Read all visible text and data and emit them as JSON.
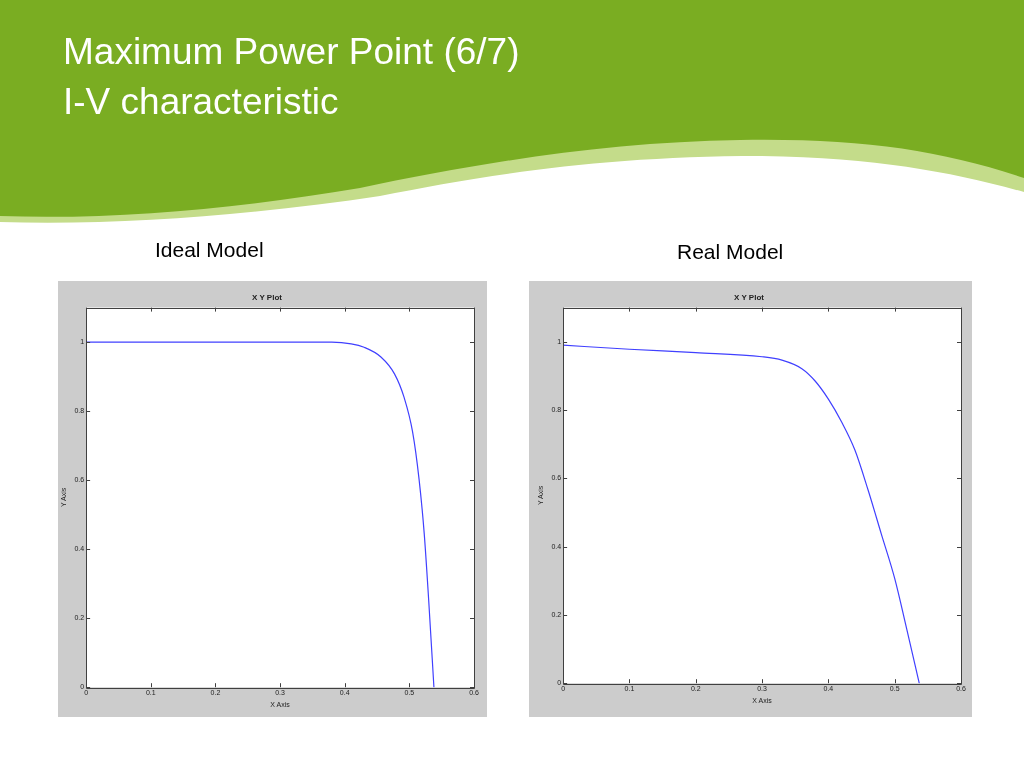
{
  "chart_data": [
    {
      "type": "line",
      "title": "Ideal Model",
      "subtitle": "X Y Plot",
      "xlabel": "X Axis",
      "ylabel": "Y Axis",
      "annotations": [
        "Maximum Power Point (6/7)",
        "I-V characteristic"
      ],
      "x": [
        0,
        0.38,
        0.41,
        0.43,
        0.456,
        0.477,
        0.492,
        0.505,
        0.515,
        0.523,
        0.53,
        0.538
      ],
      "series": [
        {
          "color": "#4040ff",
          "values": [
            1,
            1,
            0.995,
            0.985,
            0.957,
            0.908,
            0.839,
            0.74,
            0.603,
            0.445,
            0.249,
            0
          ]
        }
      ],
      "xlim": [
        0,
        0.6
      ],
      "xticks": [
        0,
        0.1,
        0.2,
        0.3,
        0.4,
        0.5,
        0.6
      ],
      "ylim": [
        0,
        1.1
      ],
      "yticks": [
        0,
        0.2,
        0.4,
        0.6,
        0.8,
        1
      ],
      "grid": false,
      "legend": false,
      "marker": "none",
      "line_style": "solid"
    },
    {
      "type": "line",
      "title": "Real Model",
      "subtitle": "X Y Plot",
      "xlabel": "X Axis",
      "ylabel": "Y Axis",
      "x": [
        0,
        0.1,
        0.2,
        0.3,
        0.33,
        0.36,
        0.38,
        0.4,
        0.42,
        0.44,
        0.46,
        0.48,
        0.5,
        0.518,
        0.537
      ],
      "series": [
        {
          "color": "#4040ff",
          "values": [
            0.99,
            0.978,
            0.968,
            0.956,
            0.946,
            0.921,
            0.885,
            0.832,
            0.765,
            0.683,
            0.565,
            0.436,
            0.307,
            0.16,
            0
          ]
        }
      ],
      "xlim": [
        0,
        0.6
      ],
      "xticks": [
        0,
        0.1,
        0.2,
        0.3,
        0.4,
        0.5,
        0.6
      ],
      "ylim": [
        0,
        1.1
      ],
      "yticks": [
        0,
        0.2,
        0.4,
        0.6,
        0.8,
        1
      ],
      "grid": false,
      "legend": false,
      "marker": "none",
      "line_style": "solid"
    }
  ]
}
